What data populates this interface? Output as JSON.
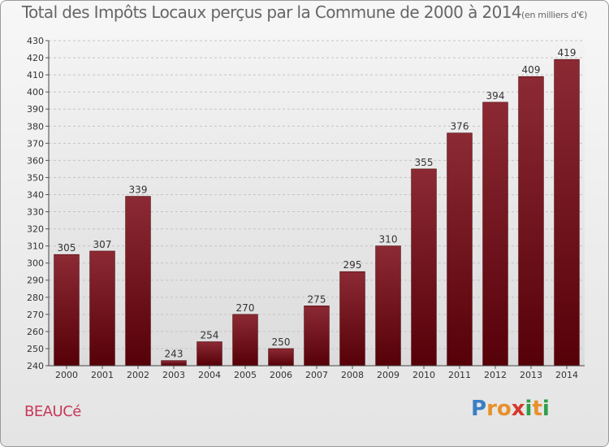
{
  "chart_data": {
    "type": "bar",
    "title": "Total des Impôts Locaux perçus par la Commune de 2000 à 2014",
    "unit_label": "(en milliers d'€)",
    "categories": [
      "2000",
      "2001",
      "2002",
      "2003",
      "2004",
      "2005",
      "2006",
      "2007",
      "2008",
      "2009",
      "2010",
      "2011",
      "2012",
      "2013",
      "2014"
    ],
    "values": [
      305,
      307,
      339,
      243,
      254,
      270,
      250,
      275,
      295,
      310,
      355,
      376,
      394,
      409,
      419
    ],
    "ylim": [
      240,
      430
    ],
    "ytick_step": 10,
    "grid": true,
    "xlabel": "",
    "ylabel": "",
    "bar_color": "#7a1a25"
  },
  "commune_name": "BEAUCé",
  "brand": {
    "letters": [
      "P",
      "r",
      "o",
      "x",
      "i",
      "t",
      "i"
    ],
    "colors": [
      "#3a7fc4",
      "#e8902a",
      "#e8902a",
      "#d4382c",
      "#2e9e4a",
      "#e8902a",
      "#2e9e4a"
    ]
  }
}
